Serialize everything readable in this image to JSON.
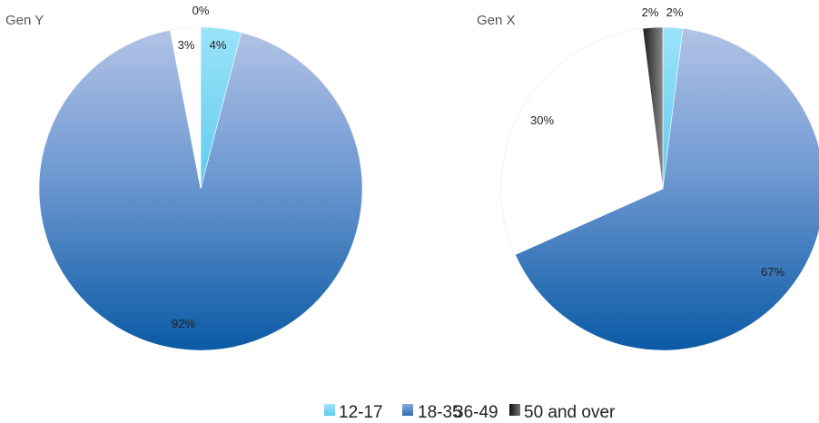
{
  "chart_data": [
    {
      "type": "pie",
      "title": "Gen Y",
      "categories": [
        "12-17",
        "18-35",
        "36-49",
        "50 and over"
      ],
      "values": [
        4,
        92,
        3,
        0
      ],
      "data_labels": [
        "4%",
        "92%",
        "3%",
        "0%"
      ]
    },
    {
      "type": "pie",
      "title": "Gen X",
      "categories": [
        "12-17",
        "18-35",
        "36-49",
        "50 and over"
      ],
      "values": [
        2,
        67,
        30,
        2
      ],
      "data_labels": [
        "2%",
        "67%",
        "30%",
        "2%"
      ]
    }
  ],
  "legend": {
    "placement": "bottom",
    "items": [
      {
        "label": "12-17",
        "color": "#7fd8f5"
      },
      {
        "label": "18-35",
        "color": "#3f7fc0"
      },
      {
        "label": "36-49",
        "color": "#ffffff"
      },
      {
        "label": "50 and over",
        "color": "#333333"
      }
    ]
  },
  "colors": {
    "cyan": "#8adcf7",
    "blue_light": "#aabde4",
    "blue_dark": "#0d5fa8",
    "white": "#ffffff",
    "gray_dark": "#222222"
  }
}
